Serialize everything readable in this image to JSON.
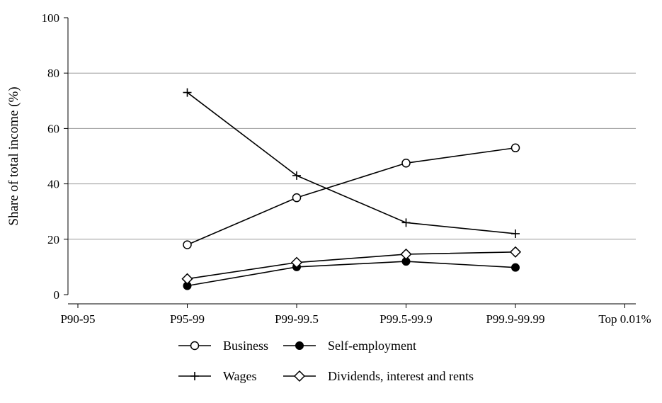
{
  "chart_data": {
    "type": "line",
    "title": "",
    "xlabel": "",
    "ylabel": "Share of total income (%)",
    "categories": [
      "P90-95",
      "P95-99",
      "P99-99.5",
      "P99.5-99.9",
      "P99.9-99.99",
      "Top 0.01%"
    ],
    "ylim": [
      0,
      100
    ],
    "yticks": [
      0,
      20,
      40,
      60,
      80,
      100
    ],
    "grid": true,
    "legend_position": "bottom",
    "series": [
      {
        "name": "Business",
        "marker": "open-circle",
        "values": [
          null,
          18,
          35,
          47.5,
          53,
          null
        ]
      },
      {
        "name": "Self-employment",
        "marker": "filled-circle",
        "values": [
          null,
          3.2,
          10,
          12,
          9.8,
          null
        ]
      },
      {
        "name": "Wages",
        "marker": "plus",
        "values": [
          null,
          73,
          43,
          26,
          22,
          null
        ]
      },
      {
        "name": "Dividends, interest and rents",
        "marker": "open-diamond",
        "values": [
          null,
          5.7,
          11.6,
          14.6,
          15.4,
          null
        ]
      }
    ]
  }
}
